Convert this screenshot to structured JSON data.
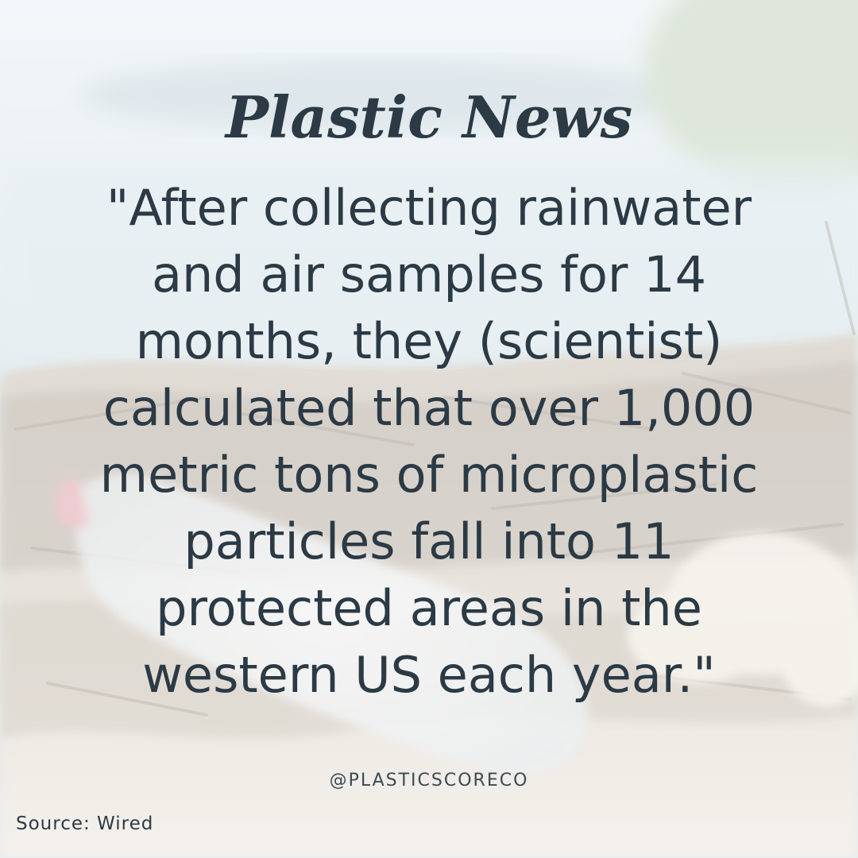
{
  "post": {
    "title": "Plastic News",
    "quote_lines": [
      "\"After collecting rainwater",
      "and air samples for 14",
      "months, they (scientist)",
      "calculated that over 1,000",
      "metric tons of microplastic",
      "particles fall into 11",
      "protected areas in the",
      "western US each year.\""
    ],
    "handle": "@PLASTICSCORECO",
    "source": "Source: Wired"
  },
  "colors": {
    "text": "#2b3a45",
    "sky": "#dfe9ee",
    "sand": "#e8e2d8",
    "overlay": "#ffffff"
  },
  "icons": {
    "background": "beach-plastic-bottle-photo"
  }
}
